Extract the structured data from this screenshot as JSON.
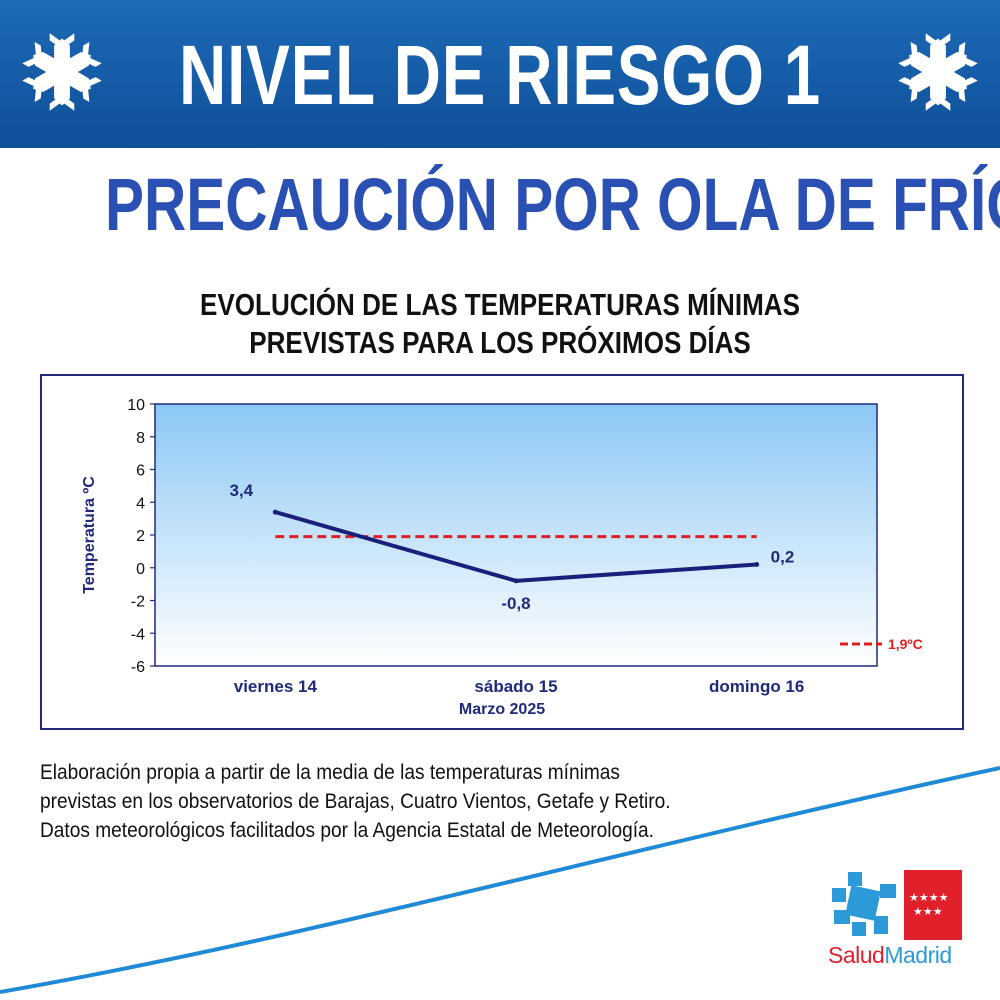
{
  "header": {
    "risk_level": "NIVEL DE RIESGO 1",
    "subtitle": "PRECAUCIÓN  POR OLA DE FRÍO",
    "icons": [
      "snowflake-icon",
      "snowflake-icon"
    ]
  },
  "chart_title": {
    "line1": "EVOLUCIÓN DE LAS TEMPERATURAS MÍNIMAS",
    "line2": "PREVISTAS PARA LOS PRÓXIMOS DÍAS"
  },
  "chart_data": {
    "type": "line",
    "title": "EVOLUCIÓN DE LAS TEMPERATURAS MÍNIMAS PREVISTAS PARA LOS PRÓXIMOS DÍAS",
    "xlabel": "Marzo 2025",
    "ylabel": "Temperatura ºC",
    "categories": [
      "viernes 14",
      "sábado 15",
      "domingo 16"
    ],
    "series": [
      {
        "values": [
          3.4,
          -0.8,
          0.2
        ],
        "labels": [
          "3,4",
          "-0,8",
          "0,2"
        ],
        "color": "#1a1f7a"
      }
    ],
    "threshold": {
      "value": 1.9,
      "label": "1,9ºC",
      "color": "#e01e1e",
      "style": "dashed"
    },
    "ylim": [
      -6,
      10
    ],
    "yticks": [
      "-6",
      "-4",
      "-2",
      "0",
      "2",
      "4",
      "6",
      "8",
      "10"
    ],
    "ytick_values": [
      -6,
      -4,
      -2,
      0,
      2,
      4,
      6,
      8,
      10
    ],
    "grid": false,
    "legend": "bottom-right",
    "plot_background": [
      "#8cc8f5",
      "#ffffff"
    ]
  },
  "footnote": {
    "lines": [
      "Elaboración propia a partir de la media de las temperaturas mínimas",
      "previstas en los observatorios de Barajas, Cuatro Vientos, Getafe y Retiro.",
      "Datos meteorológicos facilitados por la Agencia Estatal de Meteorología."
    ]
  },
  "logo": {
    "part1": "Salud",
    "part2": "Madrid",
    "icon": "salud-madrid-logo-icon",
    "colors": {
      "cross": "#2c9ad9",
      "flag": "#e0202a",
      "stars": "#ffffff"
    }
  },
  "colors": {
    "banner": "#1560aa",
    "subtitle": "#2a50b4",
    "chart_border": "#1f2a7a",
    "swoosh": "#1f8ad6"
  }
}
